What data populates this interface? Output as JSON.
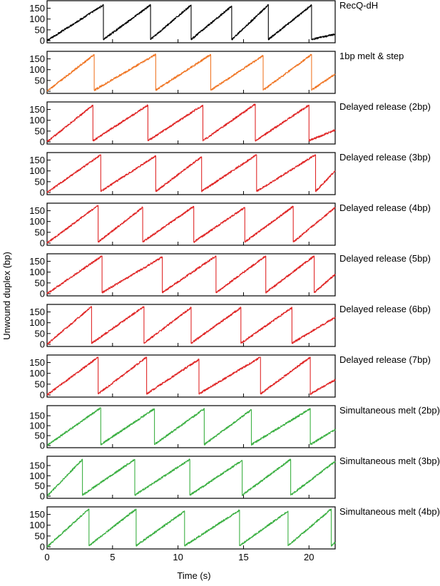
{
  "figure": {
    "ylabel": "Unwound duplex (bp)",
    "xlabel": "Time (s)",
    "x_ticks": [
      "0",
      "5",
      "10",
      "15",
      "20"
    ],
    "y_ticks": [
      "0",
      "50",
      "100",
      "150"
    ]
  },
  "chart_data": [
    {
      "type": "line",
      "label": "RecQ-dH",
      "color": "#000000",
      "xlim": [
        0,
        22
      ],
      "ylim": [
        0,
        175
      ],
      "peaks": [
        4.3,
        7.9,
        11.0,
        14.1,
        16.9,
        20.2
      ],
      "peak_y": [
        165,
        165,
        165,
        160,
        165,
        165
      ],
      "start_y": 0,
      "end_y": 30
    },
    {
      "type": "line",
      "label": "1bp melt & step",
      "color": "#f07828",
      "xlim": [
        0,
        22
      ],
      "ylim": [
        0,
        175
      ],
      "peaks": [
        3.6,
        8.3,
        12.5,
        16.5,
        20.2
      ],
      "peak_y": [
        170,
        170,
        170,
        165,
        170
      ],
      "start_y": 0,
      "end_y": 80
    },
    {
      "type": "line",
      "label": "Delayed release (2bp)",
      "color": "#e02828",
      "xlim": [
        0,
        22
      ],
      "ylim": [
        0,
        175
      ],
      "peaks": [
        3.5,
        7.7,
        11.9,
        15.9,
        20.0
      ],
      "peak_y": [
        170,
        170,
        170,
        175,
        170
      ],
      "start_y": 0,
      "end_y": 55
    },
    {
      "type": "line",
      "label": "Delayed release (3bp)",
      "color": "#e02828",
      "xlim": [
        0,
        22
      ],
      "ylim": [
        0,
        175
      ],
      "peaks": [
        4.1,
        8.3,
        11.8,
        16.0,
        20.5
      ],
      "peak_y": [
        175,
        170,
        165,
        175,
        175
      ],
      "start_y": 0,
      "end_y": 100
    },
    {
      "type": "line",
      "label": "Delayed release (4bp)",
      "color": "#e02828",
      "xlim": [
        0,
        22
      ],
      "ylim": [
        0,
        175
      ],
      "peaks": [
        3.9,
        7.3,
        11.2,
        15.1,
        18.8
      ],
      "peak_y": [
        175,
        165,
        170,
        165,
        170
      ],
      "start_y": 0,
      "end_y": 165
    },
    {
      "type": "line",
      "label": "Delayed release (5bp)",
      "color": "#e02828",
      "xlim": [
        0,
        22
      ],
      "ylim": [
        0,
        175
      ],
      "peaks": [
        4.2,
        8.8,
        12.9,
        16.7,
        20.4
      ],
      "peak_y": [
        175,
        170,
        175,
        175,
        175
      ],
      "start_y": 0,
      "end_y": 90
    },
    {
      "type": "line",
      "label": "Delayed release (6bp)",
      "color": "#e02828",
      "xlim": [
        0,
        22
      ],
      "ylim": [
        0,
        175
      ],
      "peaks": [
        3.4,
        7.4,
        11.0,
        14.8,
        18.7
      ],
      "peak_y": [
        175,
        175,
        170,
        170,
        170
      ],
      "start_y": 0,
      "end_y": 125
    },
    {
      "type": "line",
      "label": "Delayed release (7bp)",
      "color": "#e02828",
      "xlim": [
        0,
        22
      ],
      "ylim": [
        0,
        175
      ],
      "peaks": [
        3.9,
        7.6,
        11.6,
        16.3,
        20.1
      ],
      "peak_y": [
        175,
        175,
        165,
        175,
        175
      ],
      "start_y": 0,
      "end_y": 70
    },
    {
      "type": "line",
      "label": "Simultaneous melt (2bp)",
      "color": "#3cb043",
      "xlim": [
        0,
        22
      ],
      "ylim": [
        0,
        190
      ],
      "peaks": [
        4.1,
        8.2,
        12.0,
        15.6,
        20.1
      ],
      "peak_y": [
        190,
        185,
        185,
        180,
        185
      ],
      "start_y": 0,
      "end_y": 80
    },
    {
      "type": "line",
      "label": "Simultaneous melt (3bp)",
      "color": "#3cb043",
      "xlim": [
        0,
        22
      ],
      "ylim": [
        0,
        185
      ],
      "peaks": [
        2.7,
        6.7,
        10.9,
        14.9,
        18.6
      ],
      "peak_y": [
        180,
        180,
        180,
        175,
        180
      ],
      "start_y": 0,
      "end_y": 170
    },
    {
      "type": "line",
      "label": "Simultaneous melt (4bp)",
      "color": "#3cb043",
      "xlim": [
        0,
        22
      ],
      "ylim": [
        0,
        175
      ],
      "peaks": [
        3.2,
        6.8,
        10.5,
        14.7,
        18.4,
        21.7
      ],
      "peak_y": [
        175,
        175,
        165,
        170,
        165,
        175
      ],
      "start_y": 0,
      "end_y": 20
    }
  ]
}
